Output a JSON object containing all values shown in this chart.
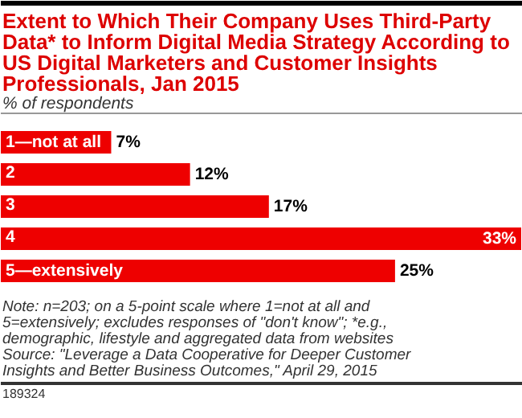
{
  "chart_data": {
    "type": "bar",
    "orientation": "horizontal",
    "title": "Extent to Which Their Company Uses Third-Party Data* to Inform Digital Media Strategy According to US Digital Marketers and Customer Insights Professionals, Jan 2015",
    "subtitle": "% of respondents",
    "categories": [
      "1—not at all",
      "2",
      "3",
      "4",
      "5—extensively"
    ],
    "values": [
      7,
      12,
      17,
      33,
      25
    ],
    "color": "#ee0000",
    "value_labels": [
      "7%",
      "12%",
      "17%",
      "33%",
      "25%"
    ],
    "annotations": [
      "Note: n=203; on a 5-point scale where 1=not at all and 5=extensively; excludes responses of \"don't know\"; *e.g., demographic, lifestyle and aggregated data from websites",
      "Source: \"Leverage a Data Cooperative for Deeper Customer Insights and Better Business Outcomes,\" April 29, 2015",
      "189324"
    ]
  }
}
